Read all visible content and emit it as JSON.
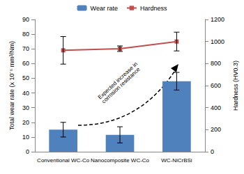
{
  "chart_data": {
    "type": "bar",
    "categories": [
      "Conventional WC-Co",
      "Nanocomposite WC-Co",
      "WC-NiCrBSi"
    ],
    "series": [
      {
        "name": "Wear rate",
        "type": "bar",
        "color": "#4f81bd",
        "values": [
          15,
          11.5,
          48
        ],
        "errors": [
          5,
          5.5,
          6
        ]
      },
      {
        "name": "Hardness",
        "type": "line",
        "axis": "y2",
        "color": "#c0504d",
        "marker": "square",
        "values": [
          920,
          935,
          1000
        ],
        "errors": [
          125,
          25,
          85
        ]
      }
    ],
    "ylabel": "Total wear rate (x 10⁻⁶ mm³/Nm)",
    "y2label": "Hardness (HV0.3)",
    "ylim": [
      0,
      90
    ],
    "yticks": [
      0,
      10,
      20,
      30,
      40,
      50,
      60,
      70,
      80,
      90
    ],
    "y2lim": [
      0,
      1200
    ],
    "y2ticks": [
      0,
      200,
      400,
      600,
      800,
      1000,
      1200
    ],
    "annotations": [
      "Expected increase in corrosion resistance"
    ],
    "legend": "top",
    "grid": false
  }
}
